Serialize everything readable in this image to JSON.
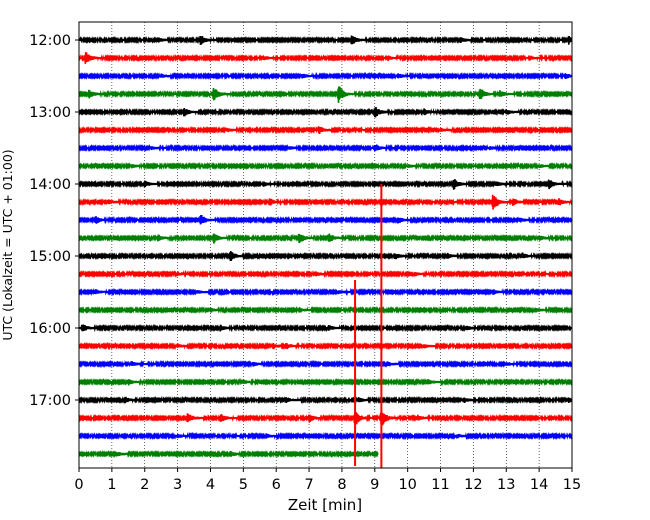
{
  "chart_data": {
    "type": "line",
    "title": "",
    "xlabel": "Zeit  [min]",
    "ylabel": "UTC (Lokalzeit = UTC + 01:00)",
    "xlim": [
      0,
      15
    ],
    "x_ticks": [
      "0",
      "1",
      "2",
      "3",
      "4",
      "5",
      "6",
      "7",
      "8",
      "9",
      "10",
      "11",
      "12",
      "13",
      "14",
      "15"
    ],
    "y_ticks": [
      "12:00",
      "13:00",
      "14:00",
      "15:00",
      "16:00",
      "17:00"
    ],
    "grid": "vertical dotted at each minute",
    "trace_interval_min": 15,
    "trace_colors": [
      "#000000",
      "#ff0000",
      "#0000ff",
      "#008000"
    ],
    "traces": [
      {
        "start": "12:00",
        "end_min": 15,
        "events": [
          [
            3.7,
            0.55
          ],
          [
            8.3,
            0.55
          ],
          [
            14.9,
            0.5
          ],
          [
            2.4,
            0.25
          ],
          [
            11.6,
            0.3
          ]
        ]
      },
      {
        "start": "12:15",
        "end_min": 15,
        "events": [
          [
            0.2,
            0.7
          ],
          [
            5.6,
            0.25
          ],
          [
            9.4,
            0.25
          ],
          [
            13.7,
            0.25
          ]
        ]
      },
      {
        "start": "12:30",
        "end_min": 15,
        "events": [
          [
            9.7,
            0.3
          ],
          [
            14.8,
            0.3
          ],
          [
            2.5,
            0.2
          ],
          [
            6.8,
            0.2
          ]
        ]
      },
      {
        "start": "12:45",
        "end_min": 15,
        "events": [
          [
            0.3,
            0.45
          ],
          [
            4.1,
            0.8
          ],
          [
            7.9,
            1.0
          ],
          [
            12.2,
            0.75
          ],
          [
            12.8,
            0.4
          ]
        ]
      },
      {
        "start": "13:00",
        "end_min": 15,
        "events": [
          [
            3.2,
            0.45
          ],
          [
            9.0,
            0.7
          ],
          [
            10.5,
            0.3
          ],
          [
            13.0,
            0.3
          ]
        ]
      },
      {
        "start": "13:15",
        "end_min": 15,
        "events": [
          [
            7.3,
            0.45
          ],
          [
            4.5,
            0.2
          ],
          [
            11.0,
            0.2
          ]
        ]
      },
      {
        "start": "13:30",
        "end_min": 15,
        "events": [
          [
            9.0,
            0.45
          ],
          [
            2.2,
            0.2
          ],
          [
            6.4,
            0.2
          ],
          [
            12.5,
            0.2
          ]
        ]
      },
      {
        "start": "13:45",
        "end_min": 15,
        "events": [
          [
            1.6,
            0.2
          ],
          [
            10.0,
            0.2
          ],
          [
            14.0,
            0.2
          ]
        ]
      },
      {
        "start": "14:00",
        "end_min": 15,
        "events": [
          [
            2.0,
            0.35
          ],
          [
            11.4,
            0.65
          ],
          [
            14.3,
            0.55
          ],
          [
            12.7,
            0.3
          ],
          [
            5.6,
            0.25
          ]
        ]
      },
      {
        "start": "14:15",
        "end_min": 15,
        "events": [
          [
            5.8,
            0.4
          ],
          [
            12.6,
            0.95
          ],
          [
            13.2,
            0.4
          ],
          [
            14.6,
            0.35
          ],
          [
            0.9,
            0.25
          ]
        ]
      },
      {
        "start": "14:30",
        "end_min": 15,
        "events": [
          [
            0.5,
            0.45
          ],
          [
            3.7,
            0.6
          ],
          [
            9.7,
            0.35
          ],
          [
            13.4,
            0.25
          ]
        ]
      },
      {
        "start": "14:45",
        "end_min": 15,
        "events": [
          [
            2.4,
            0.35
          ],
          [
            4.1,
            0.55
          ],
          [
            6.7,
            0.6
          ],
          [
            7.6,
            0.55
          ],
          [
            14.0,
            0.3
          ]
        ]
      },
      {
        "start": "15:00",
        "end_min": 15,
        "events": [
          [
            4.6,
            0.6
          ],
          [
            9.6,
            0.4
          ],
          [
            11.2,
            0.3
          ],
          [
            13.5,
            0.3
          ]
        ]
      },
      {
        "start": "15:15",
        "end_min": 15,
        "events": [
          [
            7.2,
            0.25
          ],
          [
            10.2,
            0.2
          ],
          [
            3.0,
            0.2
          ]
        ]
      },
      {
        "start": "15:30",
        "end_min": 15,
        "events": [
          [
            0.5,
            0.25
          ],
          [
            3.6,
            0.2
          ],
          [
            7.9,
            0.2
          ],
          [
            12.6,
            0.25
          ]
        ]
      },
      {
        "start": "15:45",
        "end_min": 15,
        "events": [
          [
            4.0,
            0.25
          ],
          [
            6.7,
            0.25
          ],
          [
            13.9,
            0.25
          ]
        ]
      },
      {
        "start": "16:00",
        "end_min": 15,
        "events": [
          [
            0.1,
            0.45
          ],
          [
            4.3,
            0.3
          ],
          [
            7.6,
            0.3
          ],
          [
            11.8,
            0.25
          ]
        ]
      },
      {
        "start": "16:15",
        "end_min": 15,
        "events": [
          [
            5.9,
            0.3
          ],
          [
            6.3,
            0.3
          ],
          [
            3.0,
            0.2
          ],
          [
            10.5,
            0.2
          ]
        ]
      },
      {
        "start": "16:30",
        "end_min": 15,
        "events": [
          [
            1.6,
            0.25
          ],
          [
            5.3,
            0.2
          ],
          [
            9.4,
            0.2
          ],
          [
            13.0,
            0.2
          ]
        ]
      },
      {
        "start": "16:45",
        "end_min": 15,
        "events": [
          [
            1.5,
            0.3
          ],
          [
            10.6,
            0.3
          ],
          [
            5.0,
            0.2
          ]
        ]
      },
      {
        "start": "17:00",
        "end_min": 15,
        "events": [
          [
            1.4,
            0.35
          ],
          [
            6.3,
            0.3
          ],
          [
            8.5,
            0.3
          ],
          [
            11.7,
            0.3
          ],
          [
            14.9,
            0.3
          ]
        ]
      },
      {
        "start": "17:15",
        "end_min": 15,
        "events": [
          [
            3.3,
            0.55
          ],
          [
            4.3,
            0.5
          ],
          [
            7.0,
            0.45
          ],
          [
            8.4,
            0.9
          ],
          [
            9.2,
            1.0
          ],
          [
            10.3,
            0.3
          ]
        ]
      },
      {
        "start": "17:30",
        "end_min": 15,
        "events": [
          [
            5.7,
            0.25
          ],
          [
            3.0,
            0.2
          ],
          [
            11.5,
            0.2
          ]
        ]
      },
      {
        "start": "17:45",
        "end_min": 9.1,
        "events": [
          [
            4.6,
            0.3
          ],
          [
            1.2,
            0.2
          ]
        ]
      }
    ],
    "spikes": [
      {
        "x": 8.4,
        "from": "15:20",
        "to": "17:55",
        "color": "#ff0000"
      },
      {
        "x": 9.2,
        "from": "14:00",
        "to": "17:57",
        "color": "#ff0000"
      }
    ]
  }
}
